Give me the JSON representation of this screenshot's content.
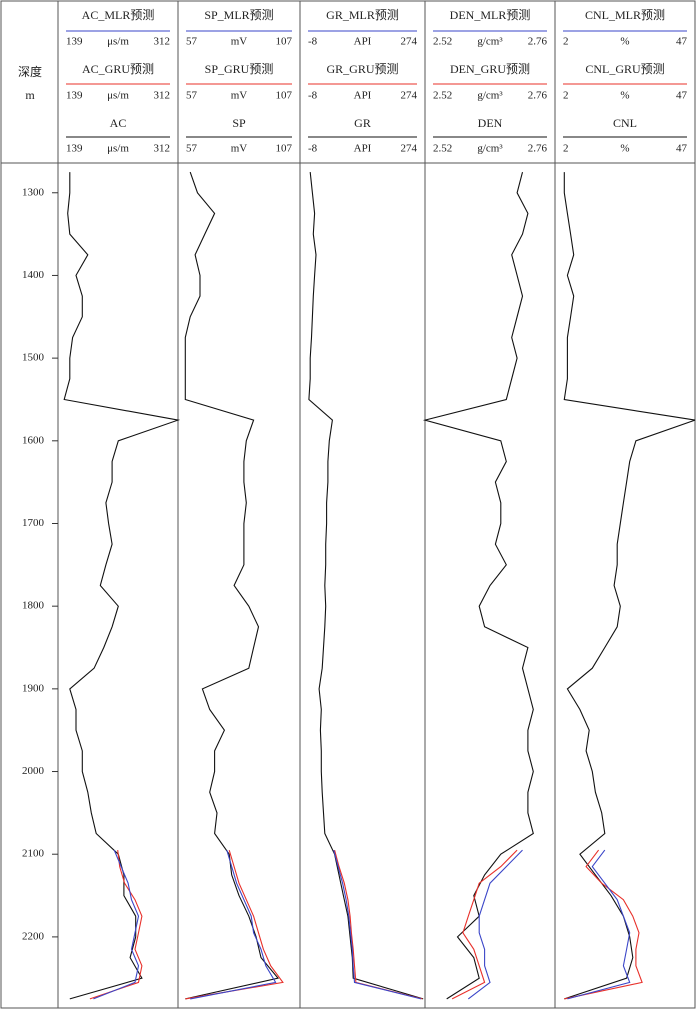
{
  "chart_data": {
    "type": "well-log",
    "depth_title": "深度",
    "depth_unit": "m",
    "ylim": [
      1264,
      2286
    ],
    "yticks": [
      1300,
      1400,
      1500,
      1600,
      1700,
      1800,
      1900,
      2000,
      2100,
      2200
    ],
    "depth": [
      1275,
      1300,
      1325,
      1350,
      1375,
      1400,
      1425,
      1450,
      1475,
      1500,
      1525,
      1550,
      1575,
      1600,
      1625,
      1650,
      1675,
      1700,
      1725,
      1750,
      1775,
      1800,
      1825,
      1850,
      1875,
      1900,
      1925,
      1950,
      1975,
      2000,
      2025,
      2050,
      2075,
      2100,
      2125,
      2150,
      2175,
      2200,
      2225,
      2250,
      2275
    ],
    "pred_depth": [
      2095,
      2115,
      2135,
      2155,
      2175,
      2195,
      2215,
      2235,
      2255,
      2275
    ],
    "tracks": [
      {
        "curves": [
          {
            "name": "AC_MLR预测",
            "unit": "μs/m",
            "xlim": [
              139,
              312
            ],
            "color": "#3a45c8",
            "values": [
              220,
              230,
              240,
              245,
              255,
              250,
              245,
              255,
              250,
              190
            ]
          },
          {
            "name": "AC_GRU预测",
            "unit": "μs/m",
            "xlim": [
              139,
              312
            ],
            "color": "#e8302a",
            "values": [
              225,
              228,
              235,
              250,
              260,
              255,
              250,
              260,
              255,
              185
            ]
          },
          {
            "name": "AC",
            "unit": "μs/m",
            "xlim": [
              139,
              312
            ],
            "color": "#111111",
            "values": [
              156,
              156,
              153,
              156,
              182,
              165,
              174,
              174,
              160,
              156,
              156,
              148,
              312,
              226,
              217,
              217,
              208,
              212,
              217,
              208,
              200,
              226,
              217,
              205,
              191,
              156,
              165,
              165,
              174,
              174,
              182,
              187,
              194,
              226,
              234,
              234,
              251,
              251,
              243,
              260,
              156
            ]
          }
        ]
      },
      {
        "curves": [
          {
            "name": "SP_MLR预测",
            "unit": "mV",
            "xlim": [
              57,
              107
            ],
            "color": "#3a45c8",
            "values": [
              77,
              79,
              81,
              84,
              87,
              88,
              91,
              93,
              97,
              62
            ]
          },
          {
            "name": "SP_GRU预测",
            "unit": "mV",
            "xlim": [
              57,
              107
            ],
            "color": "#e8302a",
            "values": [
              78,
              80,
              82,
              85,
              88,
              90,
              92,
              95,
              100,
              60
            ]
          },
          {
            "name": "SP",
            "unit": "mV",
            "xlim": [
              57,
              107
            ],
            "color": "#111111",
            "values": [
              62,
              65,
              72,
              68,
              64,
              66,
              66,
              62,
              60,
              60,
              60,
              60,
              88,
              85,
              84,
              84,
              85,
              84,
              84,
              84,
              80,
              86,
              90,
              88,
              86,
              67,
              70,
              76,
              72,
              72,
              70,
              73,
              72,
              78,
              79,
              82,
              86,
              89,
              91,
              98,
              60
            ]
          }
        ]
      },
      {
        "curves": [
          {
            "name": "GR_MLR预测",
            "unit": "API",
            "xlim": [
              -8,
              274
            ],
            "color": "#3a45c8",
            "values": [
              68,
              78,
              88,
              96,
              102,
              106,
              110,
              112,
              115,
              265
            ]
          },
          {
            "name": "GR_GRU预测",
            "unit": "API",
            "xlim": [
              -8,
              274
            ],
            "color": "#e8302a",
            "values": [
              70,
              80,
              92,
              100,
              105,
              108,
              112,
              115,
              118,
              268
            ]
          },
          {
            "name": "GR",
            "unit": "API",
            "xlim": [
              -8,
              274
            ],
            "color": "#111111",
            "values": [
              15,
              20,
              25,
              22,
              28,
              25,
              22,
              20,
              18,
              15,
              15,
              12,
              65,
              58,
              55,
              55,
              52,
              52,
              50,
              50,
              48,
              50,
              48,
              45,
              42,
              35,
              40,
              38,
              40,
              40,
              42,
              45,
              48,
              70,
              80,
              90,
              100,
              105,
              110,
              112,
              270
            ]
          }
        ]
      },
      {
        "curves": [
          {
            "name": "DEN_MLR预测",
            "unit": "g/cm³",
            "xlim": [
              2.52,
              2.76
            ],
            "color": "#3a45c8",
            "values": [
              2.7,
              2.67,
              2.64,
              2.63,
              2.62,
              2.62,
              2.63,
              2.63,
              2.64,
              2.6
            ]
          },
          {
            "name": "DEN_GRU预测",
            "unit": "g/cm³",
            "xlim": [
              2.52,
              2.76
            ],
            "color": "#e8302a",
            "values": [
              2.69,
              2.66,
              2.62,
              2.61,
              2.6,
              2.59,
              2.61,
              2.62,
              2.63,
              2.57
            ]
          },
          {
            "name": "DEN",
            "unit": "g/cm³",
            "xlim": [
              2.52,
              2.76
            ],
            "color": "#111111",
            "values": [
              2.7,
              2.69,
              2.71,
              2.7,
              2.68,
              2.69,
              2.7,
              2.69,
              2.68,
              2.69,
              2.68,
              2.67,
              2.52,
              2.66,
              2.67,
              2.65,
              2.66,
              2.66,
              2.65,
              2.67,
              2.64,
              2.62,
              2.63,
              2.71,
              2.7,
              2.71,
              2.72,
              2.71,
              2.71,
              2.72,
              2.71,
              2.71,
              2.72,
              2.66,
              2.63,
              2.61,
              2.62,
              2.58,
              2.61,
              2.62,
              2.56
            ]
          }
        ]
      },
      {
        "curves": [
          {
            "name": "CNL_MLR预测",
            "unit": "%",
            "xlim": [
              2,
              47
            ],
            "color": "#3a45c8",
            "values": [
              18,
              14,
              18,
              22,
              24,
              26,
              25,
              24,
              26,
              6
            ]
          },
          {
            "name": "CNL_GRU预测",
            "unit": "%",
            "xlim": [
              2,
              47
            ],
            "color": "#e8302a",
            "values": [
              16,
              12,
              17,
              24,
              27,
              29,
              28,
              28,
              30,
              5
            ]
          },
          {
            "name": "CNL",
            "unit": "%",
            "xlim": [
              2,
              47
            ],
            "color": "#111111",
            "values": [
              5,
              5,
              6,
              7,
              8,
              6,
              8,
              7,
              6,
              6,
              6,
              5,
              47,
              28,
              26,
              25,
              24,
              23,
              22,
              22,
              21,
              23,
              22,
              18,
              14,
              6,
              10,
              13,
              12,
              14,
              15,
              17,
              18,
              10,
              15,
              20,
              24,
              26,
              27,
              25,
              5
            ]
          }
        ]
      }
    ]
  }
}
